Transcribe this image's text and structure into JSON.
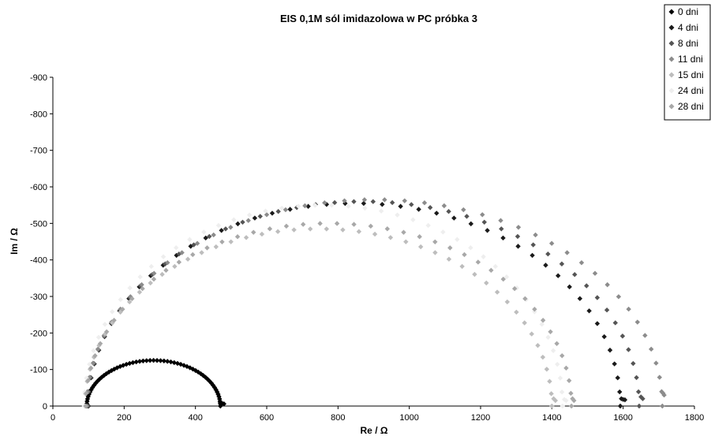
{
  "chart_data": {
    "type": "scatter",
    "title": "EIS 0,1M sól imidazolowa w PC próbka 3",
    "xlabel": "Re / Ω",
    "ylabel": "Im / Ω",
    "xlim": [
      0,
      1800
    ],
    "ylim": [
      0,
      -900
    ],
    "x_ticks": [
      "0",
      "200",
      "400",
      "600",
      "800",
      "1000",
      "1200",
      "1400",
      "1600",
      "1800"
    ],
    "y_ticks": [
      "0",
      "-100",
      "-200",
      "-300",
      "-400",
      "-500",
      "-600",
      "-700",
      "-800",
      "-900"
    ],
    "legend_position": "top-right",
    "grid": false,
    "series": [
      {
        "name": "0 dni",
        "color": "#000000",
        "arc": {
          "r0": 95,
          "r1": 470,
          "peak": -125,
          "n": 60,
          "tail": [
            [
              470,
              -10
            ],
            [
              475,
              -7
            ],
            [
              480,
              -6
            ]
          ]
        }
      },
      {
        "name": "4 dni",
        "color": "#1a1a1a",
        "arc": {
          "r0": 100,
          "r1": 1592,
          "peak": -555,
          "n": 45,
          "tail": [
            [
              1595,
              -20
            ],
            [
              1600,
              -18
            ],
            [
              1605,
              -17
            ]
          ]
        }
      },
      {
        "name": "8 dni",
        "color": "#555555",
        "arc": {
          "r0": 98,
          "r1": 1645,
          "peak": -560,
          "n": 45,
          "tail": [
            [
              1650,
              -25
            ],
            [
              1655,
              -20
            ]
          ]
        }
      },
      {
        "name": "11 dni",
        "color": "#8c8c8c",
        "arc": {
          "r0": 95,
          "r1": 1710,
          "peak": -565,
          "n": 45,
          "tail": [
            [
              1712,
              -35
            ],
            [
              1715,
              -30
            ]
          ]
        }
      },
      {
        "name": "15 dni",
        "color": "#bdbdbd",
        "arc": {
          "r0": 90,
          "r1": 1400,
          "peak": -485,
          "n": 45,
          "tail": [
            [
              1405,
              -20
            ],
            [
              1410,
              -15
            ]
          ]
        }
      },
      {
        "name": "24 dni",
        "color": "#eeeeee",
        "arc": {
          "r0": 88,
          "r1": 1430,
          "peak": -550,
          "n": 45,
          "tail": [
            [
              1435,
              -18
            ],
            [
              1440,
              -15
            ]
          ]
        }
      },
      {
        "name": "28 dni",
        "color": "#a8a8a8",
        "arc": {
          "r0": 92,
          "r1": 1455,
          "peak": -500,
          "n": 45,
          "tail": [
            [
              1458,
              -20
            ],
            [
              1462,
              -15
            ]
          ]
        }
      }
    ]
  }
}
